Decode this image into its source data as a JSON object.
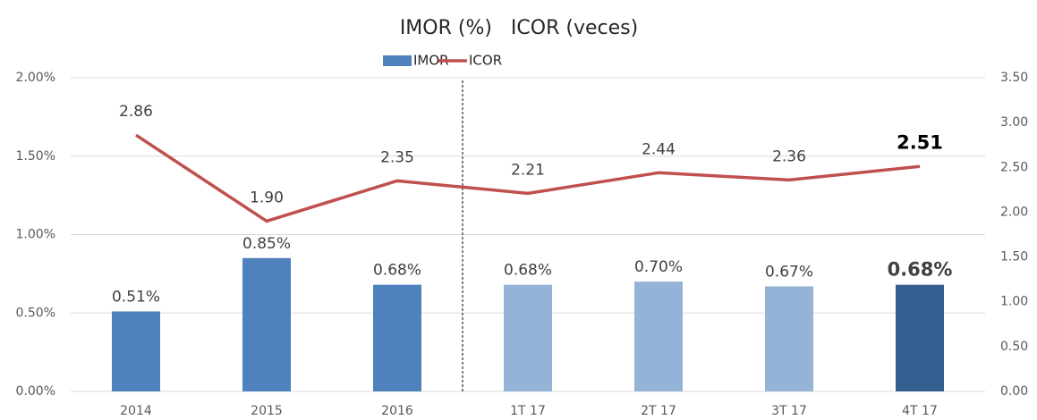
{
  "chart_data": {
    "type": "bar_line",
    "title": "IMOR (%)   ICOR (veces)",
    "categories": [
      "2014",
      "2015",
      "2016",
      "1T 17",
      "2T 17",
      "3T 17",
      "4T 17"
    ],
    "series": [
      {
        "name": "IMOR",
        "type": "bar",
        "color": "#4f81bd",
        "colors": [
          "#4f81bd",
          "#4f81bd",
          "#4f81bd",
          "#95b3d7",
          "#95b3d7",
          "#95b3d7",
          "#365f91"
        ],
        "values": [
          0.51,
          0.85,
          0.68,
          0.68,
          0.7,
          0.67,
          0.68
        ],
        "value_labels": [
          "0.51%",
          "0.85%",
          "0.68%",
          "0.68%",
          "0.70%",
          "0.67%",
          "0.68%"
        ]
      },
      {
        "name": "ICOR",
        "type": "line",
        "axis": "y2",
        "color": "#c0504d",
        "values": [
          2.86,
          1.9,
          2.35,
          2.21,
          2.44,
          2.36,
          2.51
        ],
        "value_labels": [
          "2.86",
          "1.90",
          "2.35",
          "2.21",
          "2.44",
          "2.36",
          "2.51"
        ]
      }
    ],
    "highlight_index": 6,
    "ylim": [
      0,
      2
    ],
    "yticks": [
      {
        "value": 0,
        "label": "0.00%"
      },
      {
        "value": 0.5,
        "label": "0.50%"
      },
      {
        "value": 1,
        "label": "1.00%"
      },
      {
        "value": 1.5,
        "label": "1.50%"
      },
      {
        "value": 2,
        "label": "2.00%"
      }
    ],
    "y2lim": [
      0,
      3.5
    ],
    "y2ticks": [
      {
        "value": 0,
        "label": "0.00"
      },
      {
        "value": 0.5,
        "label": "0.50"
      },
      {
        "value": 1,
        "label": "1.00"
      },
      {
        "value": 1.5,
        "label": "1.50"
      },
      {
        "value": 2,
        "label": "2.00"
      },
      {
        "value": 2.5,
        "label": "2.50"
      },
      {
        "value": 3,
        "label": "3.00"
      },
      {
        "value": 3.5,
        "label": "3.50"
      }
    ],
    "grid": true,
    "legend": "top"
  }
}
